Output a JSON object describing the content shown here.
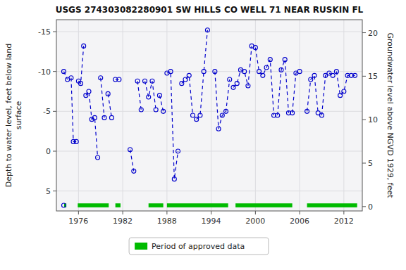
{
  "chart_data": {
    "type": "line",
    "title": "USGS 274303082280901 SW HILLS CO WELL 71 NEAR RUSKIN FL",
    "ylabel": "Depth to water level, feet below land\nsurface",
    "y2label": "Groundwater level above NGVD 1929, feet",
    "xlim": [
      1973.0,
      2014.5
    ],
    "xticks": [
      1976,
      1982,
      1988,
      1994,
      2000,
      2006,
      2012
    ],
    "ylim": [
      7.5,
      -16.5
    ],
    "yticks": [
      5,
      0,
      -5,
      -10,
      -15
    ],
    "y2lim": [
      -0.5,
      21.5
    ],
    "y2ticks": [
      0,
      5,
      10,
      15,
      20
    ],
    "grid": true,
    "legend": "bottom",
    "series": [
      {
        "type": "line",
        "color": "#0000CC",
        "line_style": "dashed",
        "marker": "circle",
        "x": [
          1974.0,
          1974.5,
          null,
          1975.0,
          1975.3,
          1975.7,
          null,
          1976.0,
          1976.3,
          1976.7,
          null,
          1977.0,
          1977.4,
          1977.8,
          1978.2,
          1978.6,
          null,
          1979.0,
          1979.5,
          null,
          1980.0,
          1980.5,
          null,
          1981.0,
          1981.5,
          null,
          1983.0,
          1983.5,
          null,
          1984.0,
          1984.5,
          null,
          1985.0,
          1985.5,
          1986.0,
          1986.5,
          null,
          1987.0,
          1987.5,
          null,
          1988.0,
          1988.5,
          1989.0,
          1989.5,
          null,
          1990.0,
          1990.5,
          1991.0,
          1991.5,
          null,
          1992.0,
          1992.5,
          1993.0,
          1993.5,
          null,
          1994.5,
          1995.0,
          1995.5,
          1996.0,
          1996.5,
          null,
          1997.0,
          1997.5,
          1998.0,
          1998.5,
          1999.0,
          1999.5,
          null,
          2000.0,
          2000.5,
          2001.0,
          2001.5,
          2002.0,
          2002.5,
          null,
          2003.0,
          2003.5,
          2004.0,
          2004.5,
          null,
          2005.0,
          2005.5,
          2006.0,
          null,
          2007.0,
          2007.5,
          2008.0,
          2008.5,
          null,
          2009.0,
          2009.5,
          2010.0,
          2010.5,
          null,
          2011.0,
          2011.5,
          2012.0,
          2012.5,
          2013.0,
          2013.5
        ],
        "values": [
          -10.0,
          -9.0,
          null,
          -9.2,
          -1.2,
          -1.2,
          null,
          -8.8,
          -8.5,
          -13.2,
          null,
          -7.0,
          -7.5,
          -4.0,
          -4.2,
          0.8,
          null,
          -9.2,
          -4.2,
          null,
          -7.2,
          -4.2,
          null,
          -9.0,
          -9.0,
          null,
          -0.2,
          2.5,
          null,
          -8.8,
          -5.2,
          null,
          -8.8,
          -6.8,
          -8.8,
          -5.2,
          null,
          -7.0,
          -5.0,
          null,
          -9.8,
          -10.0,
          3.5,
          0.0,
          null,
          -8.5,
          -9.0,
          -9.5,
          -4.5,
          null,
          -4.0,
          -4.5,
          -10.0,
          -15.2,
          null,
          -10.0,
          -2.8,
          -4.5,
          -5.0,
          -9.0,
          null,
          -8.0,
          -8.5,
          -10.2,
          -10.0,
          -8.2,
          -13.2,
          null,
          -13.0,
          -10.0,
          -9.5,
          -10.5,
          -11.5,
          -4.5,
          null,
          -4.5,
          -10.2,
          -11.5,
          -4.8,
          null,
          -4.8,
          -9.8,
          -10.0,
          null,
          -5.0,
          -9.0,
          -9.5,
          -4.8,
          null,
          -4.5,
          -9.5,
          -9.8,
          -9.5,
          null,
          -10.0,
          -7.0,
          -7.5,
          -9.5,
          -9.5,
          -9.5
        ]
      },
      {
        "type": "range",
        "name": "Period of approved data",
        "color": "#00BB00",
        "starts": [
          1974.05,
          1975.9,
          1981.0,
          1985.5,
          1988.0,
          1997.3,
          2007.0
        ],
        "ends": [
          1974.35,
          1980.1,
          1981.7,
          1987.5,
          1996.3,
          2005.0,
          2013.8
        ],
        "y": 6.8,
        "height": 0.5
      },
      {
        "type": "scatter",
        "color": "#0000CC",
        "marker": "circle",
        "x": [
          1974.0
        ],
        "values": [
          6.8
        ]
      }
    ]
  }
}
